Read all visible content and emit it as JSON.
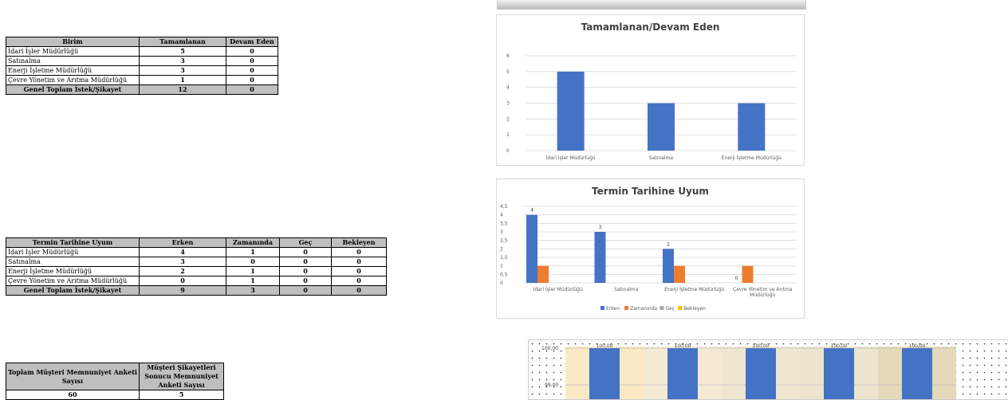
{
  "table1": {
    "headers": [
      "Birim",
      "Tamamlanan",
      "Devam Eden"
    ],
    "rows": [
      [
        "İdari İşler Müdürlüğü",
        "5",
        "0"
      ],
      [
        "Satınalma",
        "3",
        "0"
      ],
      [
        "Enerji İşletme Müdürlüğü",
        "3",
        "0"
      ],
      [
        "Çevre Yönetim ve Arıtma Müdürlüğü",
        "1",
        "0"
      ]
    ],
    "total": [
      "Genel Toplam İstek/Şikayet",
      "12",
      "0"
    ]
  },
  "table2": {
    "headers": [
      "Termin Tarihine Uyum",
      "Erken",
      "Zamanında",
      "Geç",
      "Bekleyen"
    ],
    "rows": [
      [
        "İdari İşler Müdürlüğü",
        "4",
        "1",
        "0",
        "0"
      ],
      [
        "Satınalma",
        "3",
        "0",
        "0",
        "0"
      ],
      [
        "Enerji İşletme Müdürlüğü",
        "2",
        "1",
        "0",
        "0"
      ],
      [
        "Çevre Yönetim ve Arıtma Müdürlüğü",
        "0",
        "1",
        "0",
        "0"
      ]
    ],
    "total": [
      "Genel Toplam İstek/Şikayet",
      "9",
      "3",
      "0",
      "0"
    ]
  },
  "table3": {
    "headers": [
      "Toplam Müşteri Memnuniyet Anketi Sayısı",
      "Müşteri Şikayetleri Sonucu Memnuniyet Anketi Sayısı"
    ],
    "values": [
      "60",
      "5"
    ]
  },
  "chart_data": [
    {
      "type": "bar",
      "title": "Tamamlanan/Devam Eden",
      "categories": [
        "İdari İşler Müdürlüğü",
        "Satınalma",
        "Enerji İşletme Müdürlüğü"
      ],
      "series": [
        {
          "values": [
            5,
            3,
            3
          ],
          "color": "#4472c4"
        }
      ],
      "ylim": [
        0,
        6
      ],
      "yticks": [
        "0",
        "1",
        "2",
        "3",
        "4",
        "5",
        "6"
      ],
      "grid": true
    },
    {
      "type": "bar",
      "title": "Termin Tarihine Uyum",
      "categories": [
        "İdari İşler Müdürlüğü",
        "Satınalma",
        "Enerji İşletme Müdürlüğü",
        "Çevre Yönetim ve Arıtma Müdürlüğü"
      ],
      "series": [
        {
          "name": "Erken",
          "values": [
            4,
            3,
            2,
            0
          ],
          "color": "#4472c4",
          "labels": [
            "4",
            "3",
            "2",
            "0"
          ]
        },
        {
          "name": "Zamanında",
          "values": [
            1,
            0,
            1,
            1
          ],
          "color": "#ed7d31"
        },
        {
          "name": "Geç",
          "values": [
            0,
            0,
            0,
            0
          ],
          "color": "#a5a5a5"
        },
        {
          "name": "Bekleyen",
          "values": [
            0,
            0,
            0,
            0
          ],
          "color": "#ffc000"
        }
      ],
      "ylim": [
        0,
        4.5
      ],
      "yticks": [
        "0",
        "0,5",
        "1",
        "1,5",
        "2",
        "2,5",
        "3",
        "3,5",
        "4",
        "4,5"
      ],
      "legend": "bottom",
      "grid": true
    },
    {
      "type": "bar",
      "series": [
        {
          "values": [
            100,
            100,
            100,
            100,
            100
          ],
          "color": "#4472c4",
          "labels": [
            "100,00",
            "100,00",
            "100,00",
            "100,00",
            "100,00"
          ]
        }
      ],
      "yticks": [
        "100,00",
        "99,00"
      ],
      "grid": true
    }
  ]
}
